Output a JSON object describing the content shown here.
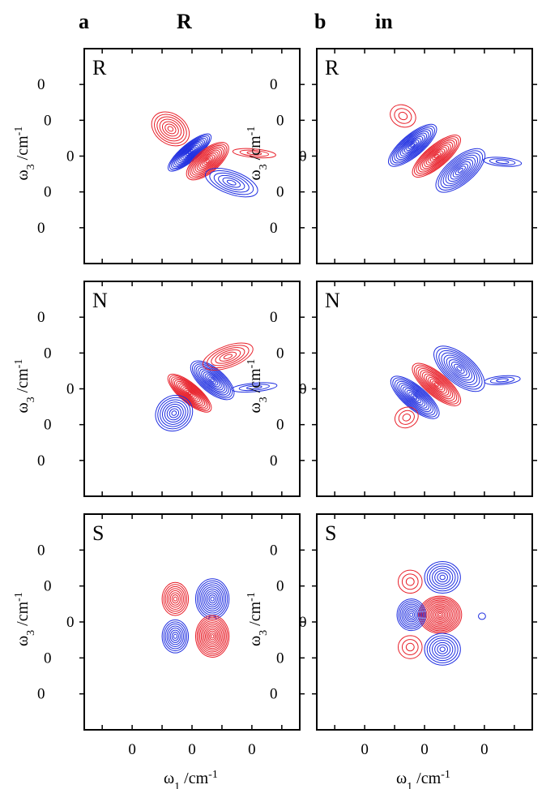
{
  "figure": {
    "columns": [
      {
        "letter": "a",
        "title": "R"
      },
      {
        "letter": "b",
        "title": "in"
      }
    ]
  },
  "colors": {
    "positive": "#e8202a",
    "negative": "#1f2ee0",
    "frame": "#000000"
  },
  "chart_data": [
    {
      "type": "contour",
      "panel_label": "R",
      "xlabel": "ω1 /cm-1",
      "ylabel": "ω3 /cm-1",
      "xticks": [
        {
          "v": -500,
          "label": "0"
        },
        {
          "v": 0,
          "label": "0"
        },
        {
          "v": 500,
          "label": "0"
        }
      ],
      "yticks": [
        {
          "v": 1000,
          "label": "0"
        },
        {
          "v": 500,
          "label": "0"
        },
        {
          "v": 0,
          "label": "0"
        },
        {
          "v": -500,
          "label": "0"
        },
        {
          "v": -1000,
          "label": "0"
        }
      ],
      "xlim": [
        -900,
        900
      ],
      "ylim": [
        -1500,
        1500
      ],
      "lobes": [
        {
          "sign": "negative",
          "x": -20,
          "y": 50,
          "rx": 70,
          "ry": 380,
          "rot": -50,
          "levels": 13
        },
        {
          "sign": "positive",
          "x": 130,
          "y": -70,
          "rx": 95,
          "ry": 360,
          "rot": -50,
          "levels": 12
        },
        {
          "sign": "positive",
          "x": -180,
          "y": 380,
          "rx": 170,
          "ry": 210,
          "rot": -35,
          "levels": 7
        },
        {
          "sign": "negative",
          "x": 330,
          "y": -370,
          "rx": 230,
          "ry": 160,
          "rot": -20,
          "levels": 6
        },
        {
          "sign": "positive",
          "x": 520,
          "y": 40,
          "rx": 180,
          "ry": 60,
          "rot": -5,
          "levels": 3
        }
      ]
    },
    {
      "type": "contour",
      "panel_label": "R",
      "xlabel": "ω1 /cm-1",
      "ylabel": "ω3 /cm-1",
      "xticks": [
        {
          "v": -500,
          "label": "0"
        },
        {
          "v": 0,
          "label": "0"
        },
        {
          "v": 500,
          "label": "0"
        }
      ],
      "yticks": [
        {
          "v": 1000,
          "label": "0"
        },
        {
          "v": 500,
          "label": "0"
        },
        {
          "v": 0,
          "label": "0"
        },
        {
          "v": -500,
          "label": "0"
        },
        {
          "v": -1000,
          "label": "0"
        }
      ],
      "xlim": [
        -900,
        900
      ],
      "ylim": [
        -1500,
        1500
      ],
      "lobes": [
        {
          "sign": "negative",
          "x": -100,
          "y": 150,
          "rx": 90,
          "ry": 420,
          "rot": -50,
          "levels": 12
        },
        {
          "sign": "positive",
          "x": 100,
          "y": 0,
          "rx": 90,
          "ry": 420,
          "rot": -50,
          "levels": 12
        },
        {
          "sign": "negative",
          "x": 300,
          "y": -200,
          "rx": 110,
          "ry": 420,
          "rot": -50,
          "levels": 10
        },
        {
          "sign": "positive",
          "x": -180,
          "y": 560,
          "rx": 110,
          "ry": 150,
          "rot": -25,
          "levels": 3
        },
        {
          "sign": "negative",
          "x": 650,
          "y": -80,
          "rx": 160,
          "ry": 60,
          "rot": -5,
          "levels": 3
        }
      ]
    },
    {
      "type": "contour",
      "panel_label": "N",
      "xlabel": "ω1 /cm-1",
      "ylabel": "ω3 /cm-1",
      "xticks": [
        {
          "v": -500,
          "label": "0"
        },
        {
          "v": 0,
          "label": "0"
        },
        {
          "v": 500,
          "label": "0"
        }
      ],
      "yticks": [
        {
          "v": 1000,
          "label": "0"
        },
        {
          "v": 500,
          "label": "0"
        },
        {
          "v": 0,
          "label": "0"
        },
        {
          "v": -500,
          "label": "0"
        },
        {
          "v": -1000,
          "label": "0"
        }
      ],
      "xlim": [
        -900,
        900
      ],
      "ylim": [
        -1500,
        1500
      ],
      "lobes": [
        {
          "sign": "positive",
          "x": -20,
          "y": -60,
          "rx": 80,
          "ry": 380,
          "rot": 50,
          "levels": 13
        },
        {
          "sign": "negative",
          "x": 170,
          "y": 120,
          "rx": 100,
          "ry": 370,
          "rot": 50,
          "levels": 12
        },
        {
          "sign": "negative",
          "x": -150,
          "y": -340,
          "rx": 160,
          "ry": 240,
          "rot": 35,
          "levels": 8
        },
        {
          "sign": "positive",
          "x": 300,
          "y": 450,
          "rx": 220,
          "ry": 150,
          "rot": 20,
          "levels": 6
        },
        {
          "sign": "negative",
          "x": 520,
          "y": 20,
          "rx": 190,
          "ry": 60,
          "rot": 5,
          "levels": 3
        }
      ]
    },
    {
      "type": "contour",
      "panel_label": "N",
      "xlabel": "ω1 /cm-1",
      "ylabel": "ω3 /cm-1",
      "xticks": [
        {
          "v": -500,
          "label": "0"
        },
        {
          "v": 0,
          "label": "0"
        },
        {
          "v": 500,
          "label": "0"
        }
      ],
      "yticks": [
        {
          "v": 1000,
          "label": "0"
        },
        {
          "v": 500,
          "label": "0"
        },
        {
          "v": 0,
          "label": "0"
        },
        {
          "v": -500,
          "label": "0"
        },
        {
          "v": -1000,
          "label": "0"
        }
      ],
      "xlim": [
        -900,
        900
      ],
      "ylim": [
        -1500,
        1500
      ],
      "lobes": [
        {
          "sign": "negative",
          "x": -80,
          "y": -120,
          "rx": 95,
          "ry": 420,
          "rot": 50,
          "levels": 12
        },
        {
          "sign": "positive",
          "x": 100,
          "y": 60,
          "rx": 95,
          "ry": 420,
          "rot": 50,
          "levels": 12
        },
        {
          "sign": "negative",
          "x": 290,
          "y": 280,
          "rx": 120,
          "ry": 430,
          "rot": 50,
          "levels": 10
        },
        {
          "sign": "positive",
          "x": -150,
          "y": -400,
          "rx": 100,
          "ry": 140,
          "rot": 25,
          "levels": 3
        },
        {
          "sign": "negative",
          "x": 650,
          "y": 120,
          "rx": 150,
          "ry": 60,
          "rot": 5,
          "levels": 3
        }
      ]
    },
    {
      "type": "contour",
      "panel_label": "S",
      "xlabel": "ω1 /cm-1",
      "ylabel": "ω3 /cm-1",
      "xticks": [
        {
          "v": -500,
          "label": "0"
        },
        {
          "v": 0,
          "label": "0"
        },
        {
          "v": 500,
          "label": "0"
        }
      ],
      "yticks": [
        {
          "v": 1000,
          "label": "0"
        },
        {
          "v": 500,
          "label": "0"
        },
        {
          "v": 0,
          "label": "0"
        },
        {
          "v": -500,
          "label": "0"
        },
        {
          "v": -1000,
          "label": "0"
        }
      ],
      "xlim": [
        -900,
        900
      ],
      "ylim": [
        -1500,
        1500
      ],
      "lobes": [
        {
          "sign": "positive",
          "x": -140,
          "y": 320,
          "rx": 110,
          "ry": 230,
          "rot": 0,
          "levels": 8
        },
        {
          "sign": "negative",
          "x": 170,
          "y": 320,
          "rx": 140,
          "ry": 280,
          "rot": 0,
          "levels": 10
        },
        {
          "sign": "negative",
          "x": -140,
          "y": -200,
          "rx": 110,
          "ry": 230,
          "rot": 0,
          "levels": 8
        },
        {
          "sign": "positive",
          "x": 170,
          "y": -200,
          "rx": 140,
          "ry": 290,
          "rot": 0,
          "levels": 12
        }
      ]
    },
    {
      "type": "contour",
      "panel_label": "S",
      "xlabel": "ω1 /cm-1",
      "ylabel": "ω3 /cm-1",
      "xticks": [
        {
          "v": -500,
          "label": "0"
        },
        {
          "v": 0,
          "label": "0"
        },
        {
          "v": 500,
          "label": "0"
        }
      ],
      "yticks": [
        {
          "v": 1000,
          "label": "0"
        },
        {
          "v": 500,
          "label": "0"
        },
        {
          "v": 0,
          "label": "0"
        },
        {
          "v": -500,
          "label": "0"
        },
        {
          "v": -1000,
          "label": "0"
        }
      ],
      "xlim": [
        -900,
        900
      ],
      "ylim": [
        -1500,
        1500
      ],
      "lobes": [
        {
          "sign": "positive",
          "x": 130,
          "y": 100,
          "rx": 180,
          "ry": 260,
          "rot": 0,
          "levels": 14
        },
        {
          "sign": "negative",
          "x": -110,
          "y": 100,
          "rx": 120,
          "ry": 220,
          "rot": 0,
          "levels": 9
        },
        {
          "sign": "negative",
          "x": 150,
          "y": 620,
          "rx": 150,
          "ry": 220,
          "rot": 0,
          "levels": 7
        },
        {
          "sign": "negative",
          "x": 150,
          "y": -380,
          "rx": 150,
          "ry": 220,
          "rot": 0,
          "levels": 7
        },
        {
          "sign": "positive",
          "x": -120,
          "y": 560,
          "rx": 100,
          "ry": 160,
          "rot": 0,
          "levels": 3
        },
        {
          "sign": "positive",
          "x": -120,
          "y": -350,
          "rx": 100,
          "ry": 160,
          "rot": 0,
          "levels": 3
        },
        {
          "sign": "negative",
          "x": 480,
          "y": 80,
          "rx": 30,
          "ry": 45,
          "rot": 0,
          "levels": 1
        }
      ]
    }
  ]
}
